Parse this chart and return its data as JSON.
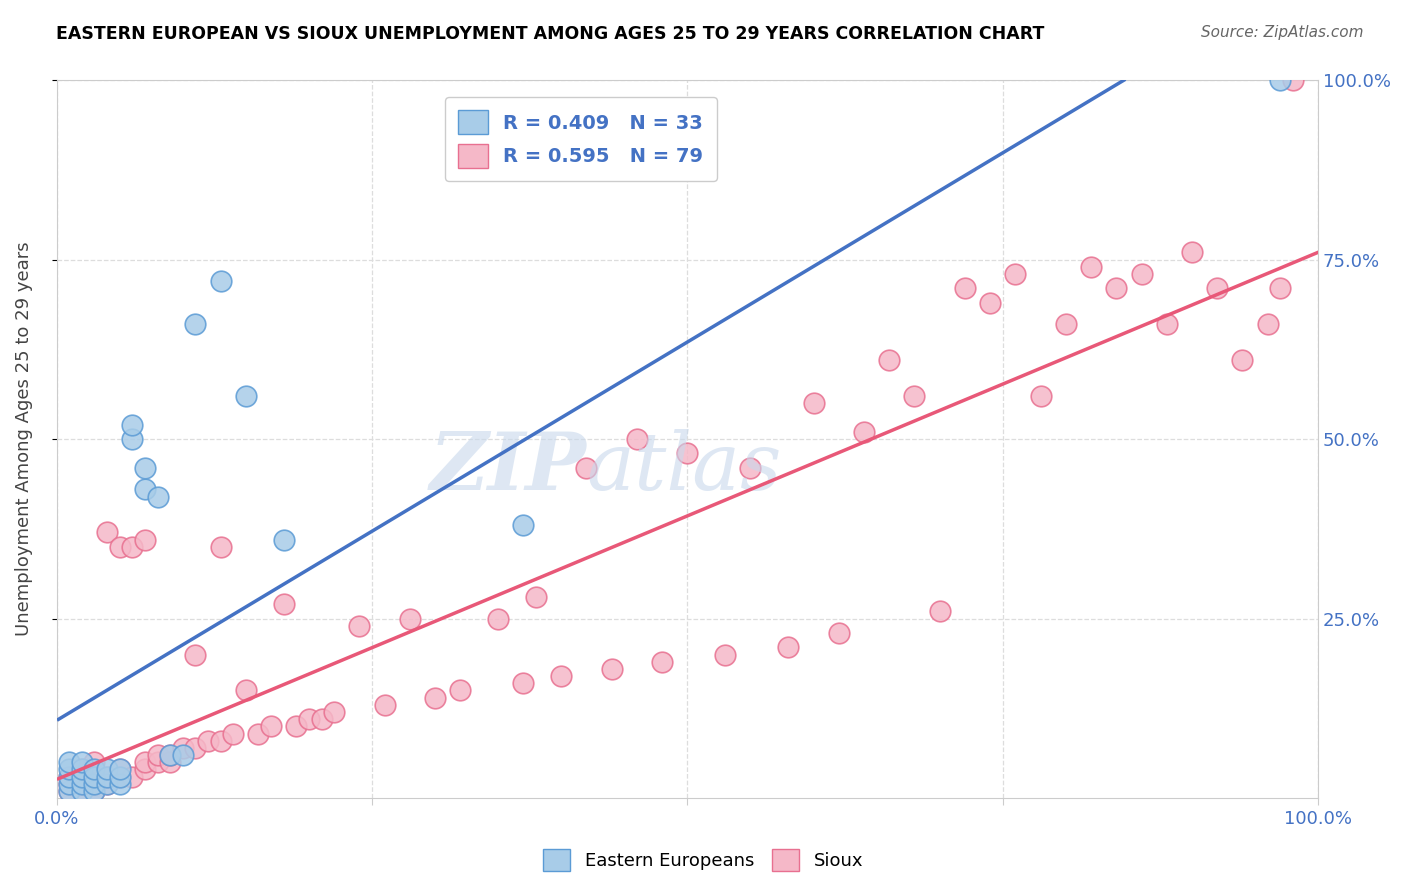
{
  "title": "EASTERN EUROPEAN VS SIOUX UNEMPLOYMENT AMONG AGES 25 TO 29 YEARS CORRELATION CHART",
  "source": "Source: ZipAtlas.com",
  "ylabel": "Unemployment Among Ages 25 to 29 years",
  "blue_color": "#a8cce8",
  "pink_color": "#f5b8c8",
  "blue_edge_color": "#5b9bd5",
  "pink_edge_color": "#e87090",
  "blue_line_color": "#4472c4",
  "pink_line_color": "#e85878",
  "text_color": "#4472c4",
  "legend_blue_text": "R = 0.409   N = 33",
  "legend_pink_text": "R = 0.595   N = 79",
  "blue_scatter_x": [
    0.01,
    0.01,
    0.01,
    0.01,
    0.01,
    0.02,
    0.02,
    0.02,
    0.02,
    0.02,
    0.03,
    0.03,
    0.03,
    0.03,
    0.04,
    0.04,
    0.04,
    0.05,
    0.05,
    0.05,
    0.06,
    0.06,
    0.07,
    0.07,
    0.08,
    0.09,
    0.1,
    0.11,
    0.13,
    0.15,
    0.18,
    0.37,
    0.97
  ],
  "blue_scatter_y": [
    0.01,
    0.02,
    0.03,
    0.04,
    0.05,
    0.01,
    0.02,
    0.03,
    0.04,
    0.05,
    0.01,
    0.02,
    0.03,
    0.04,
    0.02,
    0.03,
    0.04,
    0.02,
    0.03,
    0.04,
    0.5,
    0.52,
    0.43,
    0.46,
    0.42,
    0.06,
    0.06,
    0.66,
    0.72,
    0.56,
    0.36,
    0.38,
    1.0
  ],
  "pink_scatter_x": [
    0.01,
    0.01,
    0.01,
    0.02,
    0.02,
    0.02,
    0.02,
    0.03,
    0.03,
    0.03,
    0.03,
    0.04,
    0.04,
    0.04,
    0.05,
    0.05,
    0.05,
    0.06,
    0.06,
    0.07,
    0.07,
    0.07,
    0.08,
    0.08,
    0.09,
    0.09,
    0.1,
    0.11,
    0.11,
    0.12,
    0.13,
    0.13,
    0.14,
    0.15,
    0.16,
    0.17,
    0.18,
    0.19,
    0.2,
    0.21,
    0.22,
    0.24,
    0.26,
    0.28,
    0.3,
    0.32,
    0.35,
    0.37,
    0.38,
    0.4,
    0.42,
    0.44,
    0.46,
    0.48,
    0.5,
    0.53,
    0.55,
    0.58,
    0.6,
    0.62,
    0.64,
    0.66,
    0.68,
    0.7,
    0.72,
    0.74,
    0.76,
    0.78,
    0.8,
    0.82,
    0.84,
    0.86,
    0.88,
    0.9,
    0.92,
    0.94,
    0.96,
    0.97,
    0.98
  ],
  "pink_scatter_y": [
    0.01,
    0.02,
    0.03,
    0.01,
    0.02,
    0.03,
    0.04,
    0.01,
    0.02,
    0.03,
    0.05,
    0.02,
    0.03,
    0.37,
    0.03,
    0.04,
    0.35,
    0.03,
    0.35,
    0.04,
    0.05,
    0.36,
    0.05,
    0.06,
    0.05,
    0.06,
    0.07,
    0.07,
    0.2,
    0.08,
    0.08,
    0.35,
    0.09,
    0.15,
    0.09,
    0.1,
    0.27,
    0.1,
    0.11,
    0.11,
    0.12,
    0.24,
    0.13,
    0.25,
    0.14,
    0.15,
    0.25,
    0.16,
    0.28,
    0.17,
    0.46,
    0.18,
    0.5,
    0.19,
    0.48,
    0.2,
    0.46,
    0.21,
    0.55,
    0.23,
    0.51,
    0.61,
    0.56,
    0.26,
    0.71,
    0.69,
    0.73,
    0.56,
    0.66,
    0.74,
    0.71,
    0.73,
    0.66,
    0.76,
    0.71,
    0.61,
    0.66,
    0.71,
    1.0
  ]
}
